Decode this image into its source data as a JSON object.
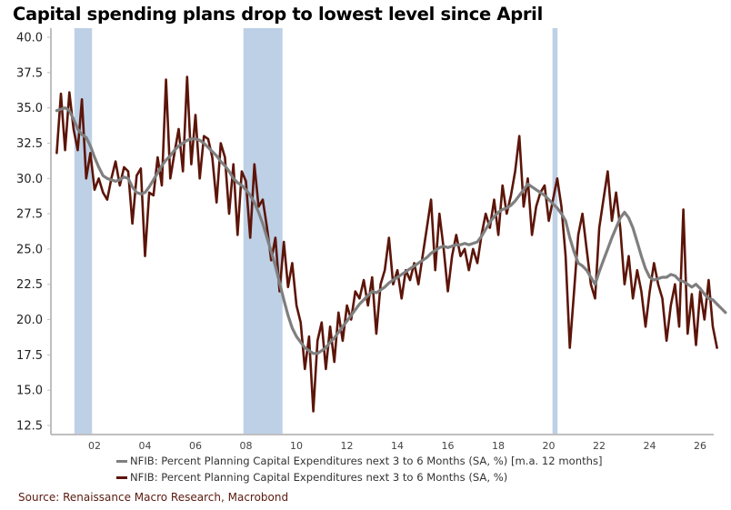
{
  "chart_data": {
    "type": "line",
    "title": "Capital spending plans drop to lowest level since April",
    "xlabel": "",
    "ylabel": "",
    "ylim": [
      12.5,
      40.0
    ],
    "xlim": [
      2000.25,
      2026.3
    ],
    "yticks": [
      "40.0",
      "37.5",
      "35.0",
      "32.5",
      "30.0",
      "27.5",
      "25.0",
      "22.5",
      "20.0",
      "17.5",
      "15.0",
      "12.5"
    ],
    "ytick_values": [
      40.0,
      37.5,
      35.0,
      32.5,
      30.0,
      27.5,
      25.0,
      22.5,
      20.0,
      17.5,
      15.0,
      12.5
    ],
    "xticks": [
      "02",
      "04",
      "06",
      "08",
      "10",
      "12",
      "14",
      "16",
      "18",
      "20",
      "22",
      "24",
      "26"
    ],
    "xtick_values": [
      2002,
      2004,
      2006,
      2008,
      2010,
      2012,
      2014,
      2016,
      2018,
      2020,
      2022,
      2024,
      2026
    ],
    "grid": false,
    "legend_position": "bottom",
    "recessions": [
      {
        "start": 2001.2,
        "end": 2001.9
      },
      {
        "start": 2007.9,
        "end": 2009.45
      },
      {
        "start": 2020.15,
        "end": 2020.35
      }
    ],
    "x_start": 2000.5,
    "x_step": 0.1667,
    "series": [
      {
        "name": "NFIB: Percent Planning Capital Expenditures next 3 to 6 Months (SA, %)",
        "color": "#5c1509",
        "values": [
          31.8,
          36.0,
          32.0,
          36.1,
          33.5,
          32.0,
          35.6,
          30.0,
          31.8,
          29.2,
          30.0,
          29.0,
          28.5,
          30.0,
          31.2,
          29.5,
          30.8,
          30.5,
          26.8,
          30.2,
          30.7,
          24.5,
          29.0,
          28.8,
          31.5,
          29.5,
          37.0,
          30.0,
          31.8,
          33.5,
          30.5,
          37.2,
          31.0,
          34.5,
          30.0,
          33.0,
          32.8,
          31.5,
          28.3,
          32.5,
          31.5,
          27.5,
          31.0,
          26.0,
          30.5,
          29.8,
          25.8,
          31.0,
          28.0,
          28.5,
          26.5,
          24.2,
          25.8,
          22.0,
          25.5,
          22.3,
          24.0,
          21.0,
          19.8,
          16.5,
          18.8,
          13.5,
          18.5,
          19.8,
          16.5,
          19.5,
          17.0,
          20.5,
          18.5,
          21.0,
          20.0,
          22.0,
          21.5,
          22.8,
          21.0,
          23.0,
          19.0,
          22.5,
          23.5,
          25.8,
          22.5,
          23.5,
          21.5,
          23.5,
          22.8,
          24.0,
          22.5,
          24.5,
          26.5,
          28.5,
          23.5,
          27.5,
          25.0,
          22.0,
          24.5,
          26.0,
          24.5,
          25.0,
          23.5,
          25.0,
          24.0,
          26.0,
          27.5,
          26.5,
          28.5,
          26.0,
          29.5,
          27.5,
          28.8,
          30.5,
          33.0,
          28.0,
          30.0,
          26.0,
          28.0,
          29.0,
          29.5,
          27.0,
          28.5,
          30.0,
          28.0,
          24.5,
          18.0,
          22.0,
          26.0,
          27.5,
          25.0,
          22.5,
          21.5,
          26.5,
          28.5,
          30.5,
          27.0,
          29.0,
          26.5,
          22.5,
          24.5,
          21.5,
          23.5,
          22.0,
          19.5,
          22.0,
          24.0,
          22.5,
          21.5,
          18.5,
          21.0,
          22.5,
          19.5,
          27.8,
          19.0,
          21.8,
          18.2,
          22.0,
          20.0,
          22.8,
          19.5,
          18.0
        ]
      },
      {
        "name": "NFIB: Percent Planning Capital Expenditures next 3 to 6 Months (SA, %) [m.a. 12 months]",
        "color": "#7f7f7f",
        "values": [
          34.8,
          34.9,
          35.0,
          34.8,
          34.2,
          33.5,
          33.1,
          32.9,
          32.3,
          31.5,
          30.8,
          30.2,
          30.0,
          29.9,
          29.8,
          29.9,
          30.1,
          30.0,
          29.4,
          29.0,
          28.9,
          29.0,
          29.4,
          29.9,
          30.4,
          30.9,
          31.3,
          31.6,
          32.0,
          32.3,
          32.5,
          32.7,
          32.8,
          32.8,
          32.7,
          32.5,
          32.2,
          31.9,
          31.6,
          31.2,
          30.9,
          30.5,
          30.0,
          29.7,
          29.5,
          29.2,
          28.8,
          28.3,
          27.6,
          26.8,
          25.8,
          24.8,
          23.8,
          22.6,
          21.4,
          20.3,
          19.4,
          18.8,
          18.4,
          18.0,
          17.8,
          17.6,
          17.6,
          17.8,
          18.0,
          18.4,
          18.7,
          19.1,
          19.5,
          19.9,
          20.3,
          20.7,
          21.1,
          21.4,
          21.7,
          22.0,
          21.9,
          22.1,
          22.3,
          22.6,
          22.8,
          23.0,
          23.2,
          23.4,
          23.6,
          23.8,
          24.0,
          24.2,
          24.4,
          24.7,
          24.9,
          25.1,
          25.2,
          25.1,
          25.2,
          25.3,
          25.3,
          25.4,
          25.3,
          25.4,
          25.5,
          25.9,
          26.4,
          26.9,
          27.3,
          27.6,
          27.8,
          27.9,
          28.1,
          28.4,
          28.8,
          29.2,
          29.6,
          29.4,
          29.2,
          29.0,
          28.8,
          28.5,
          28.2,
          27.9,
          27.5,
          27.0,
          25.8,
          24.8,
          24.0,
          23.8,
          23.5,
          23.0,
          22.5,
          23.4,
          24.2,
          25.0,
          25.8,
          26.5,
          27.2,
          27.6,
          27.2,
          26.5,
          25.5,
          24.5,
          23.6,
          23.0,
          22.8,
          22.9,
          23.0,
          23.0,
          23.2,
          23.1,
          22.8,
          22.7,
          22.5,
          22.3,
          22.5,
          22.2,
          21.8,
          21.5,
          21.4,
          21.1,
          20.8,
          20.5
        ]
      }
    ],
    "legend": [
      {
        "label": "NFIB: Percent Planning Capital Expenditures next 3 to 6 Months (SA, %) [m.a. 12 months]",
        "color": "#7f7f7f"
      },
      {
        "label": "NFIB: Percent Planning Capital Expenditures next 3 to 6 Months (SA, %)",
        "color": "#5c1509"
      }
    ]
  },
  "header": {
    "title": "Capital spending plans drop to lowest level since April"
  },
  "legend": {
    "items": [
      {
        "label": "NFIB: Percent Planning Capital Expenditures next 3 to 6 Months (SA, %) [m.a. 12 months]",
        "color": "#7f7f7f"
      },
      {
        "label": "NFIB: Percent Planning Capital Expenditures next 3 to 6 Months (SA, %)",
        "color": "#5c1509"
      }
    ]
  },
  "footer": {
    "source": "Source: Renaissance Macro Research, Macrobond"
  },
  "colors": {
    "recession_band": "#bdd0e6",
    "axis": "#bfbfbf",
    "raw_series": "#5c1509",
    "moving_average": "#7f7f7f",
    "source_text": "#5a1a0e"
  }
}
